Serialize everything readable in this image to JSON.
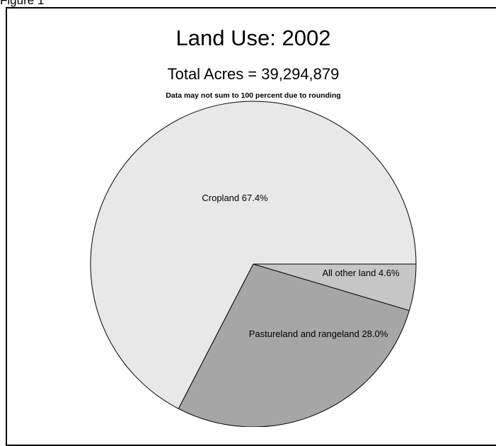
{
  "figure": {
    "label": "Figure 1"
  },
  "chart_data": {
    "type": "pie",
    "title": "Land Use: 2002",
    "subtitle": "Total Acres = 39,294,879",
    "note": "Data may not sum to 100 percent due to rounding",
    "slices": [
      {
        "name": "Cropland",
        "value": 67.4,
        "label": "Cropland 67.4%",
        "color": "#e8e8e8"
      },
      {
        "name": "Pastureland and rangeland",
        "value": 28.0,
        "label": "Pastureland and rangeland 28.0%",
        "color": "#a6a6a6"
      },
      {
        "name": "All other land",
        "value": 4.6,
        "label": "All other land 4.6%",
        "color": "#c6c6c6"
      }
    ],
    "colors": {
      "edge": "#000000",
      "frame": "#000000"
    }
  }
}
